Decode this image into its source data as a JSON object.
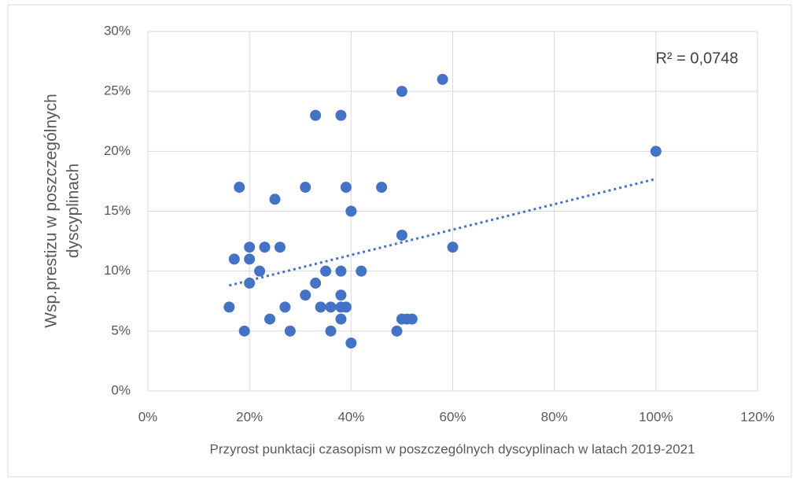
{
  "chart_data": {
    "type": "scatter",
    "x_label": "Przyrost punktacji czasopism w poszczególnych dyscyplinach w latach 2019-2021",
    "y_label": [
      "Wsp.prestizu w poszczególnych",
      "dyscyplinach"
    ],
    "annotation": "R² = 0,0748",
    "color": "#4472c4",
    "grid": true,
    "xlim": [
      0,
      120
    ],
    "xticks": [
      {
        "value": 0,
        "label": "0%"
      },
      {
        "value": 20,
        "label": "20%"
      },
      {
        "value": 40,
        "label": "40%"
      },
      {
        "value": 60,
        "label": "60%"
      },
      {
        "value": 80,
        "label": "80%"
      },
      {
        "value": 100,
        "label": "100%"
      },
      {
        "value": 120,
        "label": "120%"
      }
    ],
    "ylim": [
      0,
      30
    ],
    "yticks": [
      {
        "value": 0,
        "label": "0%"
      },
      {
        "value": 5,
        "label": "5%"
      },
      {
        "value": 10,
        "label": "10%"
      },
      {
        "value": 15,
        "label": "15%"
      },
      {
        "value": 20,
        "label": "20%"
      },
      {
        "value": 25,
        "label": "25%"
      },
      {
        "value": 30,
        "label": "30%"
      }
    ],
    "x": [
      16,
      17,
      18,
      19,
      20,
      20,
      20,
      22,
      23,
      24,
      25,
      26,
      27,
      28,
      31,
      31,
      33,
      33,
      34,
      35,
      36,
      36,
      38,
      38,
      38,
      38,
      38,
      39,
      39,
      40,
      40,
      42,
      46,
      49,
      50,
      50,
      50,
      51,
      52,
      58,
      60,
      100
    ],
    "values": [
      7,
      11,
      17,
      5,
      12,
      11,
      9,
      10,
      12,
      6,
      16,
      12,
      7,
      5,
      17,
      8,
      23,
      9,
      7,
      10,
      7,
      5,
      23,
      10,
      8,
      7,
      6,
      7,
      17,
      15,
      4,
      10,
      17,
      5,
      25,
      13,
      6,
      6,
      6,
      26,
      12,
      20
    ],
    "trendline": {
      "x": [
        16,
        100
      ],
      "values": [
        8.8,
        17.7
      ]
    }
  }
}
